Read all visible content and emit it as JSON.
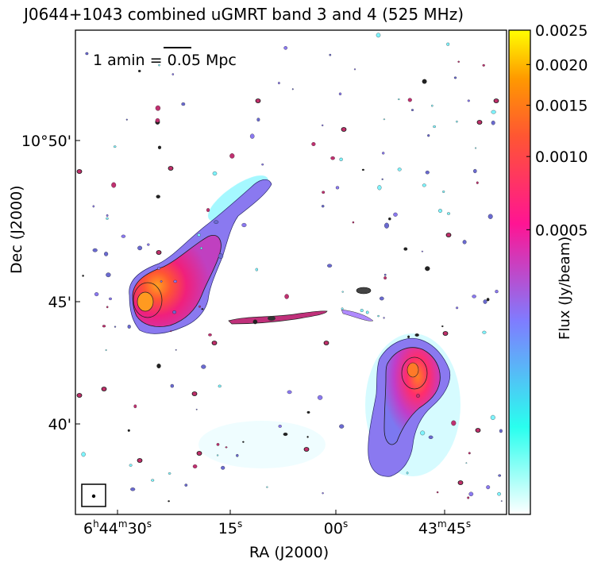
{
  "chart_data": {
    "type": "heatmap",
    "title": "J0644+1043 combined uGMRT band 3 and 4 (525 MHz)",
    "xlabel": "RA (J2000)",
    "ylabel": "Dec (J2000)",
    "x_ticks": [
      {
        "pre": "6",
        "h": "h",
        "mid1": "44",
        "m": "m",
        "mid2": "30",
        "s": "s"
      },
      {
        "pre": "15",
        "s": "s"
      },
      {
        "pre": "00",
        "s": "s"
      },
      {
        "pre": "43",
        "m": "m",
        "mid2": "45",
        "s": "s"
      }
    ],
    "y_ticks": [
      "10°50'",
      "45'",
      "40'"
    ],
    "scalebar_label": "1 amin = 0.05 Mpc",
    "colorbar": {
      "label": "Flux (Jy/beam)",
      "ticks": [
        "0.0025",
        "0.0020",
        "0.0015",
        "0.0010",
        "0.0005"
      ],
      "tick_values": [
        0.0025,
        0.002,
        0.0015,
        0.001,
        0.0005
      ],
      "range": [
        0,
        0.0025
      ],
      "scale": "power-stretch",
      "colors": [
        "#ffffff",
        "#29ffee",
        "#7f7cff",
        "#ff1493",
        "#ff5533",
        "#ff9900",
        "#ffff00"
      ]
    },
    "grid": false,
    "legend": "none"
  }
}
